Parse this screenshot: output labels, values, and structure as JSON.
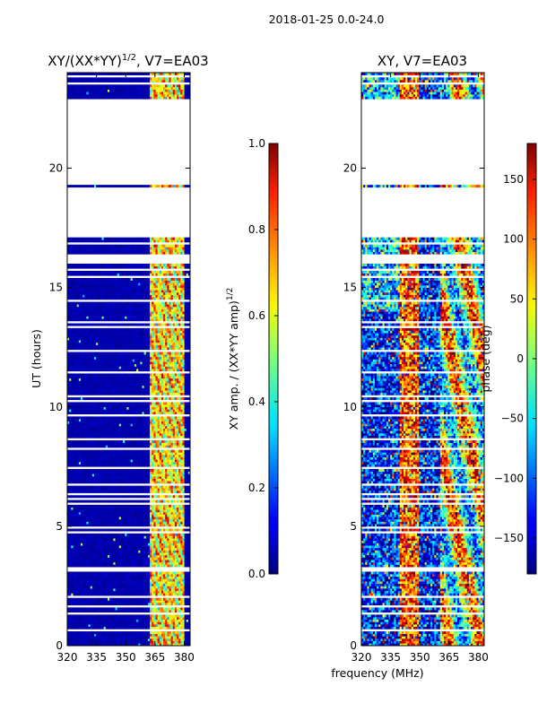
{
  "suptitle": "2018-01-25 0.0-24.0",
  "chart_data": [
    {
      "type": "heatmap",
      "title_prefix": "XY/(XX*YY)",
      "title_sup": "1/2",
      "title_suffix": ", V7=EA03",
      "xlabel": "",
      "ylabel": "UT (hours)",
      "xlim": [
        320,
        383
      ],
      "ylim": [
        0,
        24
      ],
      "xticks": [
        320,
        335,
        350,
        365,
        380
      ],
      "yticks": [
        0,
        5,
        10,
        15,
        20
      ],
      "xtick_labels": [
        "320",
        "335",
        "350",
        "365",
        "380"
      ],
      "ytick_labels": [
        "0",
        "5",
        "10",
        "15",
        "20"
      ],
      "data_gaps_hours": [
        [
          17.1,
          19.05
        ],
        [
          19.4,
          22.9
        ]
      ],
      "active_band_mhz": [
        362,
        380
      ],
      "colorbar": {
        "label_main": "XY amp. / (XX*YY amp)",
        "label_sup": "1/2",
        "min": 0.0,
        "max": 1.0,
        "ticks": [
          0.0,
          0.2,
          0.4,
          0.6,
          0.8,
          1.0
        ],
        "tick_labels": [
          "0.0",
          "0.2",
          "0.4",
          "0.6",
          "0.8",
          "1.0"
        ]
      }
    },
    {
      "type": "heatmap",
      "title": "XY, V7=EA03",
      "xlabel": "frequency (MHz)",
      "ylabel": "",
      "xlim": [
        320,
        383
      ],
      "ylim": [
        0,
        24
      ],
      "xticks": [
        320,
        335,
        350,
        365,
        380
      ],
      "yticks": [
        0,
        5,
        10,
        15,
        20
      ],
      "xtick_labels": [
        "320",
        "335",
        "350",
        "365",
        "380"
      ],
      "ytick_labels": [
        "0",
        "5",
        "10",
        "15",
        "20"
      ],
      "data_gaps_hours": [
        [
          17.1,
          19.05
        ],
        [
          19.4,
          22.9
        ]
      ],
      "colorbar": {
        "label": "phase (deg)",
        "min": -180,
        "max": 180,
        "ticks": [
          -150,
          -100,
          -50,
          0,
          50,
          100,
          150
        ],
        "tick_labels": [
          "−150",
          "−100",
          "−50",
          "0",
          "50",
          "100",
          "150"
        ]
      }
    }
  ]
}
